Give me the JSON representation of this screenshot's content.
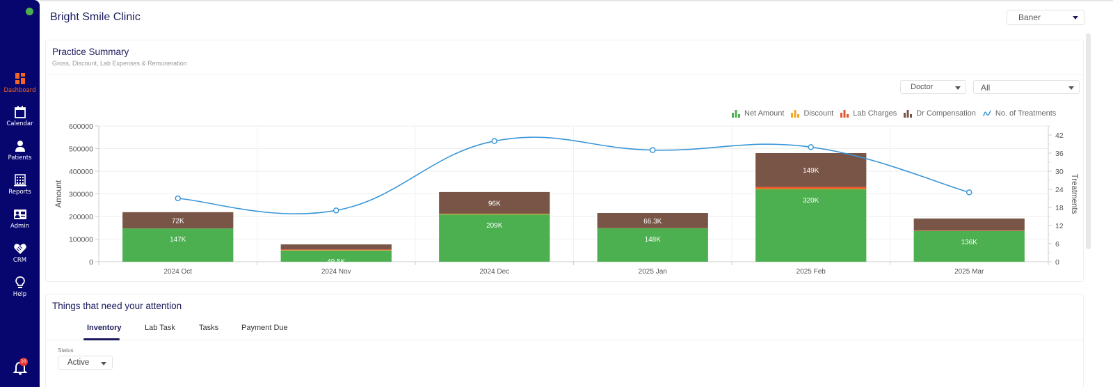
{
  "sidebar": {
    "items": [
      {
        "label": "Dashboard",
        "icon": "dashboard-icon",
        "active": true
      },
      {
        "label": "Calendar",
        "icon": "calendar-icon"
      },
      {
        "label": "Patients",
        "icon": "patient-icon"
      },
      {
        "label": "Reports",
        "icon": "reports-icon"
      },
      {
        "label": "Admin",
        "icon": "admin-icon"
      },
      {
        "label": "CRM",
        "icon": "handshake-icon"
      },
      {
        "label": "Help",
        "icon": "lightbulb-icon"
      }
    ],
    "notifications": {
      "icon": "bell-icon",
      "count": "20"
    },
    "status_color": "#4caf50",
    "active_color": "#f26522",
    "background": "#07066e"
  },
  "header": {
    "title": "Bright Smile Clinic",
    "branch_select": {
      "value": "Baner"
    }
  },
  "practice_summary": {
    "title": "Practice Summary",
    "subtitle": "Gross, Discount, Lab Expenses & Remuneration",
    "filter_type": {
      "value": "Doctor"
    },
    "filter_value": {
      "value": "All"
    },
    "legend": [
      {
        "label": "Net Amount",
        "color": "#4caf50"
      },
      {
        "label": "Discount",
        "color": "#f5a623"
      },
      {
        "label": "Lab Charges",
        "color": "#e4572e"
      },
      {
        "label": "Dr Compensation",
        "color": "#795548"
      },
      {
        "label": "No. of Treatments",
        "color": "#3a96d8"
      }
    ]
  },
  "chart_data": {
    "type": "bar",
    "stacked": true,
    "categories": [
      "2024 Oct",
      "2024 Nov",
      "2024 Dec",
      "2025 Jan",
      "2025 Feb",
      "2025 Mar"
    ],
    "series": [
      {
        "name": "Net Amount",
        "type": "bar",
        "axis": "left",
        "values": [
          147000,
          49500,
          209000,
          148000,
          320000,
          136000
        ],
        "labels": [
          "147K",
          "49.5K",
          "209K",
          "148K",
          "320K",
          "136K"
        ]
      },
      {
        "name": "Discount",
        "type": "bar",
        "axis": "left",
        "values": [
          0,
          2000,
          3000,
          0,
          3000,
          0
        ]
      },
      {
        "name": "Lab Charges",
        "type": "bar",
        "axis": "left",
        "values": [
          0,
          3000,
          0,
          1000,
          8000,
          2000
        ]
      },
      {
        "name": "Dr Compensation",
        "type": "bar",
        "axis": "left",
        "values": [
          72000,
          22000,
          96000,
          66300,
          149000,
          53000
        ],
        "labels": [
          "72K",
          "",
          "96K",
          "66.3K",
          "149K",
          ""
        ]
      },
      {
        "name": "No. of Treatments",
        "type": "line",
        "axis": "right",
        "values": [
          21,
          17,
          40,
          37,
          38,
          23
        ]
      }
    ],
    "title": "",
    "xlabel": "",
    "ylabel": "Amount",
    "y2label": "Treatments",
    "ylim": [
      0,
      600000
    ],
    "y2lim": [
      0,
      45
    ],
    "yticks": [
      "600000",
      "500000",
      "400000",
      "300000",
      "200000",
      "100000",
      "0"
    ],
    "y2ticks": [
      "42",
      "36",
      "30",
      "24",
      "18",
      "12",
      "6",
      "0"
    ],
    "grid": true,
    "legend_position": "top-right"
  },
  "attention": {
    "title": "Things that need your attention",
    "tabs": [
      {
        "label": "Inventory",
        "active": true
      },
      {
        "label": "Lab Task"
      },
      {
        "label": "Tasks"
      },
      {
        "label": "Payment Due"
      }
    ],
    "status_label": "Status",
    "status_select": {
      "value": "Active"
    }
  }
}
